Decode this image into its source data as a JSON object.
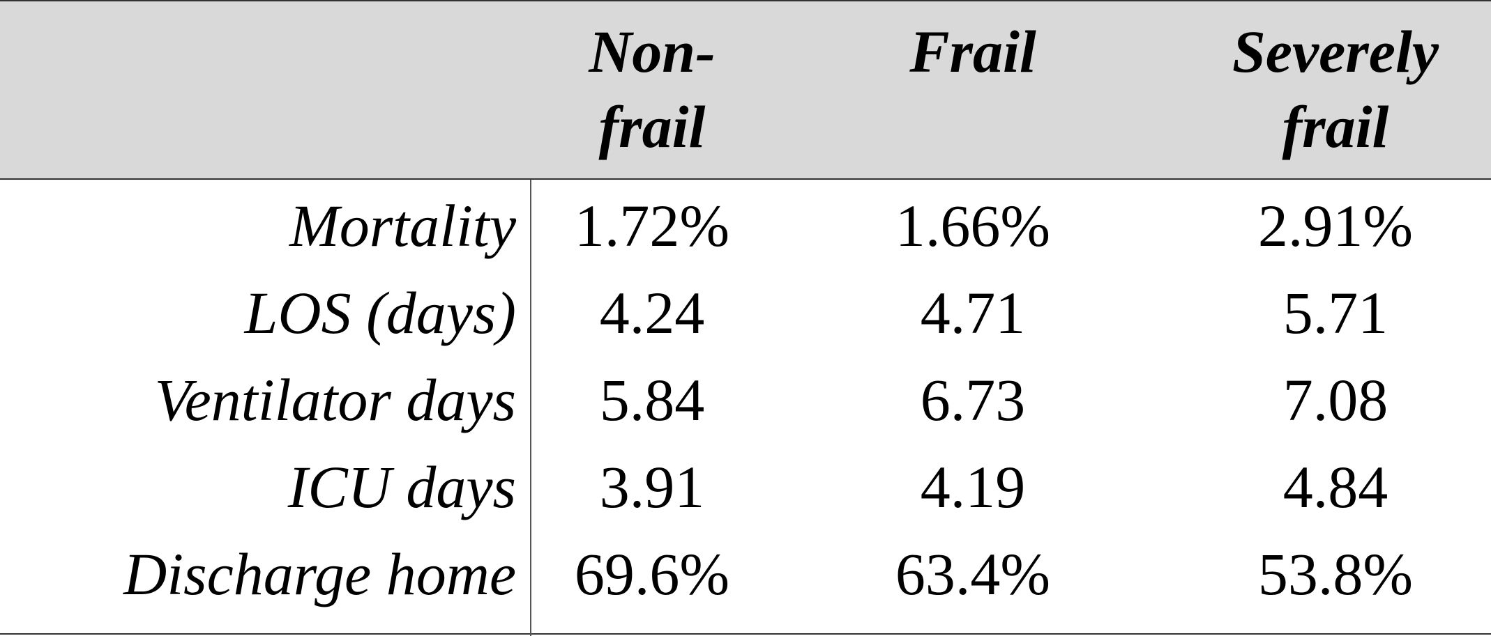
{
  "columns": [
    {
      "line1": "Non-",
      "line2": "frail"
    },
    {
      "line1": "Frail",
      "line2": ""
    },
    {
      "line1": "Severely",
      "line2": "frail"
    }
  ],
  "rows": [
    {
      "label": "Mortality",
      "values": [
        "1.72%",
        "1.66%",
        "2.91%"
      ]
    },
    {
      "label": "LOS (days)",
      "values": [
        "4.24",
        "4.71",
        "5.71"
      ]
    },
    {
      "label": "Ventilator days",
      "values": [
        "5.84",
        "6.73",
        "7.08"
      ]
    },
    {
      "label": "ICU days",
      "values": [
        "3.91",
        "4.19",
        "4.84"
      ]
    },
    {
      "label": "Discharge home",
      "values": [
        "69.6%",
        "63.4%",
        "53.8%"
      ]
    }
  ],
  "colors": {
    "header_background": "#d9d9d9",
    "border": "#333333",
    "text": "#000000"
  }
}
